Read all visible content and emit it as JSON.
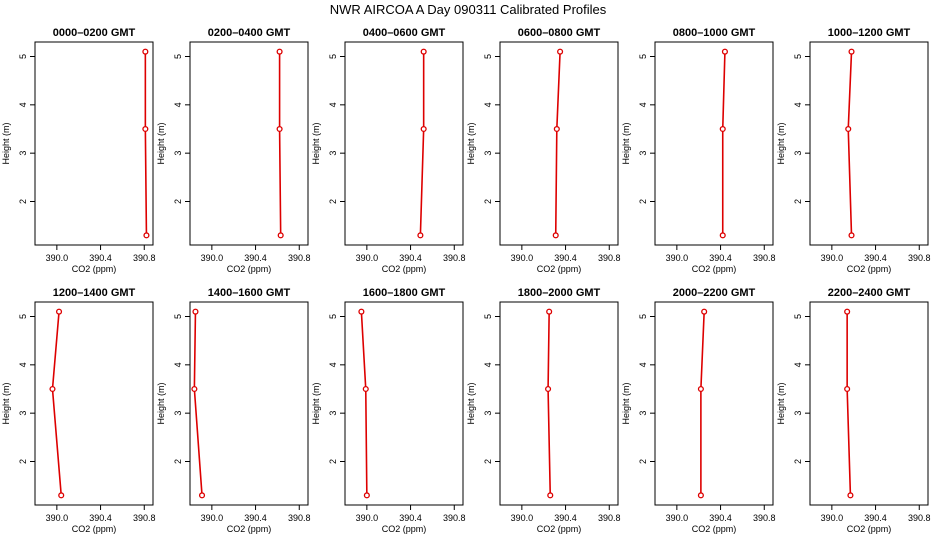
{
  "title": "NWR AIRCOA A  Day 090311  Calibrated Profiles",
  "colors": {
    "profile": "#dd0000",
    "axis": "#000000",
    "background": "#ffffff"
  },
  "chart_data": {
    "type": "line",
    "title": "NWR AIRCOA A  Day 090311  Calibrated Profiles",
    "xlabel": "CO2 (ppm)",
    "ylabel": "Height (m)",
    "xlim": [
      389.8,
      390.88
    ],
    "ylim": [
      1.1,
      5.3
    ],
    "xticks": [
      "390.0",
      "390.4",
      "390.8"
    ],
    "yticks": [
      "2",
      "3",
      "4",
      "5"
    ],
    "grid": false,
    "panels": [
      {
        "title": "0000–0200 GMT",
        "points": [
          {
            "x": 390.81,
            "y": 5.1
          },
          {
            "x": 390.81,
            "y": 3.5
          },
          {
            "x": 390.82,
            "y": 1.3
          }
        ]
      },
      {
        "title": "0200–0400 GMT",
        "points": [
          {
            "x": 390.62,
            "y": 5.1
          },
          {
            "x": 390.62,
            "y": 3.5
          },
          {
            "x": 390.63,
            "y": 1.3
          }
        ]
      },
      {
        "title": "0400–0600 GMT",
        "points": [
          {
            "x": 390.52,
            "y": 5.1
          },
          {
            "x": 390.52,
            "y": 3.5
          },
          {
            "x": 390.49,
            "y": 1.3
          }
        ]
      },
      {
        "title": "0600–0800 GMT",
        "points": [
          {
            "x": 390.35,
            "y": 5.1
          },
          {
            "x": 390.32,
            "y": 3.5
          },
          {
            "x": 390.31,
            "y": 1.3
          }
        ]
      },
      {
        "title": "0800–1000 GMT",
        "points": [
          {
            "x": 390.44,
            "y": 5.1
          },
          {
            "x": 390.42,
            "y": 3.5
          },
          {
            "x": 390.42,
            "y": 1.3
          }
        ]
      },
      {
        "title": "1000–1200 GMT",
        "points": [
          {
            "x": 390.18,
            "y": 5.1
          },
          {
            "x": 390.15,
            "y": 3.5
          },
          {
            "x": 390.18,
            "y": 1.3
          }
        ]
      },
      {
        "title": "1200–1400 GMT",
        "points": [
          {
            "x": 390.02,
            "y": 5.1
          },
          {
            "x": 389.96,
            "y": 3.5
          },
          {
            "x": 390.04,
            "y": 1.3
          }
        ]
      },
      {
        "title": "1400–1600 GMT",
        "points": [
          {
            "x": 389.85,
            "y": 5.1
          },
          {
            "x": 389.84,
            "y": 3.5
          },
          {
            "x": 389.91,
            "y": 1.3
          }
        ]
      },
      {
        "title": "1600–1800 GMT",
        "points": [
          {
            "x": 389.95,
            "y": 5.1
          },
          {
            "x": 389.99,
            "y": 3.5
          },
          {
            "x": 390.0,
            "y": 1.3
          }
        ]
      },
      {
        "title": "1800–2000 GMT",
        "points": [
          {
            "x": 390.25,
            "y": 5.1
          },
          {
            "x": 390.24,
            "y": 3.5
          },
          {
            "x": 390.26,
            "y": 1.3
          }
        ]
      },
      {
        "title": "2000–2200 GMT",
        "points": [
          {
            "x": 390.25,
            "y": 5.1
          },
          {
            "x": 390.22,
            "y": 3.5
          },
          {
            "x": 390.22,
            "y": 1.3
          }
        ]
      },
      {
        "title": "2200–2400 GMT",
        "points": [
          {
            "x": 390.14,
            "y": 5.1
          },
          {
            "x": 390.14,
            "y": 3.5
          },
          {
            "x": 390.17,
            "y": 1.3
          }
        ]
      }
    ]
  }
}
